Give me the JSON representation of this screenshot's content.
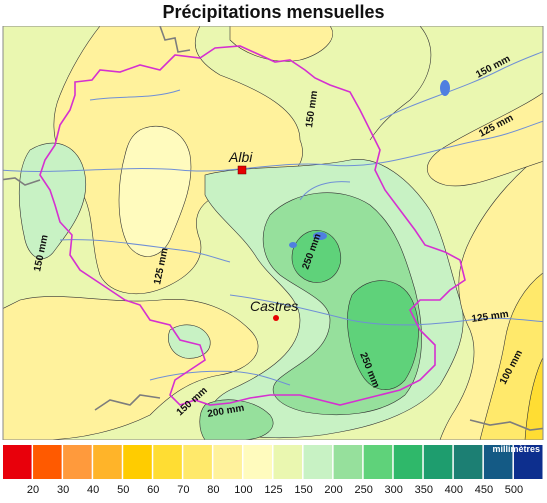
{
  "title": "Précipitations mensuelles",
  "unit_label": "millimètres",
  "contour_labels": [
    {
      "id": "c150-ne",
      "text": "150 mm"
    },
    {
      "id": "c125-ne",
      "text": "125 mm"
    },
    {
      "id": "c150-n",
      "text": "150 mm"
    },
    {
      "id": "c150-w",
      "text": "150 mm"
    },
    {
      "id": "c125-w",
      "text": "125 mm"
    },
    {
      "id": "c250-a",
      "text": "250 mm"
    },
    {
      "id": "c250-b",
      "text": "250 mm"
    },
    {
      "id": "c125-e",
      "text": "125 mm"
    },
    {
      "id": "c100-e",
      "text": "100 mm"
    },
    {
      "id": "c150-s",
      "text": "150 mm"
    },
    {
      "id": "c200-s",
      "text": "200 mm"
    }
  ],
  "cities": [
    {
      "name": "Albi"
    },
    {
      "name": "Castres"
    }
  ],
  "legend": {
    "colors": [
      "#e8000b",
      "#ff5a00",
      "#ff9a3c",
      "#ffb429",
      "#ffcc00",
      "#ffdd33",
      "#ffe96b",
      "#fff29c",
      "#fffbbe",
      "#eaf7b0",
      "#c8f2c4",
      "#96e09c",
      "#5fd27a",
      "#2fb86a",
      "#1e9d6e",
      "#1c7f73",
      "#145a85",
      "#0d2f8e"
    ],
    "ticks": [
      "20",
      "30",
      "40",
      "50",
      "60",
      "70",
      "80",
      "100",
      "125",
      "150",
      "200",
      "250",
      "300",
      "350",
      "400",
      "450",
      "500"
    ]
  }
}
